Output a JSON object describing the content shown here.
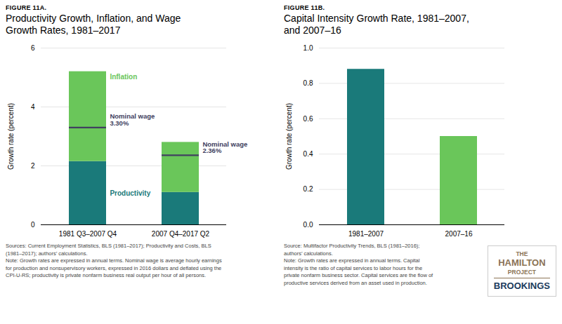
{
  "chart_data": [
    {
      "type": "bar",
      "stacked": true,
      "subtitle": "FIGURE 11A.",
      "title": "Productivity Growth, Inflation, and Wage\nGrowth Rates, 1981–2017",
      "categories": [
        "1981 Q3–2007 Q4",
        "2007 Q4–2017 Q2"
      ],
      "series": [
        {
          "name": "Productivity",
          "color": "#1a7a7a",
          "values": [
            2.15,
            1.1
          ]
        },
        {
          "name": "Inflation",
          "color": "#6ac65a",
          "values": [
            3.05,
            1.7
          ]
        },
        {
          "name": "Nominal wage",
          "type": "tick",
          "color": "#404060",
          "values": [
            3.3,
            2.36
          ],
          "data_labels": true,
          "value_labels": [
            "Nominal wage\n3.30%",
            "Nominal wage\n2.36%"
          ]
        }
      ],
      "ylabel": "Growth rate (percent)",
      "ylim": [
        0,
        6
      ],
      "yticks": [
        0,
        2,
        4,
        6
      ],
      "grid": true,
      "caption": "Sources: Current Employment Statistics, BLS (1981–2017); Productivity and Costs, BLS\n(1981–2017); authors’ calculations.\nNote: Growth rates are expressed in annual terms. Nominal wage is average hourly earnings\nfor production and nonsupervisory workers, expressed in 2016 dollars and deflated using the\nCPI-U-RS; productivity is private nonfarm business real output per hour of all persons."
    },
    {
      "type": "bar",
      "subtitle": "FIGURE 11B.",
      "title": "Capital Intensity Growth Rate, 1981–2007,\nand 2007–16",
      "categories": [
        "1981–2007",
        "2007–16"
      ],
      "values": [
        0.88,
        0.5
      ],
      "colors": [
        "#1a7a7a",
        "#6ac65a"
      ],
      "ylabel": "Growth rate (percent)",
      "ylim": [
        0,
        1.0
      ],
      "yticks": [
        {
          "value": 0.0,
          "label": "0.0"
        },
        {
          "value": 0.2,
          "label": "0.2"
        },
        {
          "value": 0.4,
          "label": "0.4"
        },
        {
          "value": 0.6,
          "label": "0.6"
        },
        {
          "value": 0.8,
          "label": "0.8"
        },
        {
          "value": 1.0,
          "label": "1.0"
        }
      ],
      "grid": true,
      "caption": "Source: Multifactor Productivity Trends, BLS (1981–2016);\nauthors’ calculations.\nNote: Growth rates are expressed in annual terms. Capital\nintensity is the ratio of capital services to labor hours for the\nprivate nonfarm business sector. Capital services are the flow of\nproductive services derived from an asset used in production.",
      "annotations": [
        {
          "text": "THE",
          "color": "#8B7355"
        },
        {
          "text": "HAMILTON",
          "color": "#8B7355"
        },
        {
          "text": "PROJECT",
          "color": "#8B7355"
        },
        {
          "text": "BROOKINGS",
          "color": "#1a3a5c"
        }
      ]
    }
  ]
}
